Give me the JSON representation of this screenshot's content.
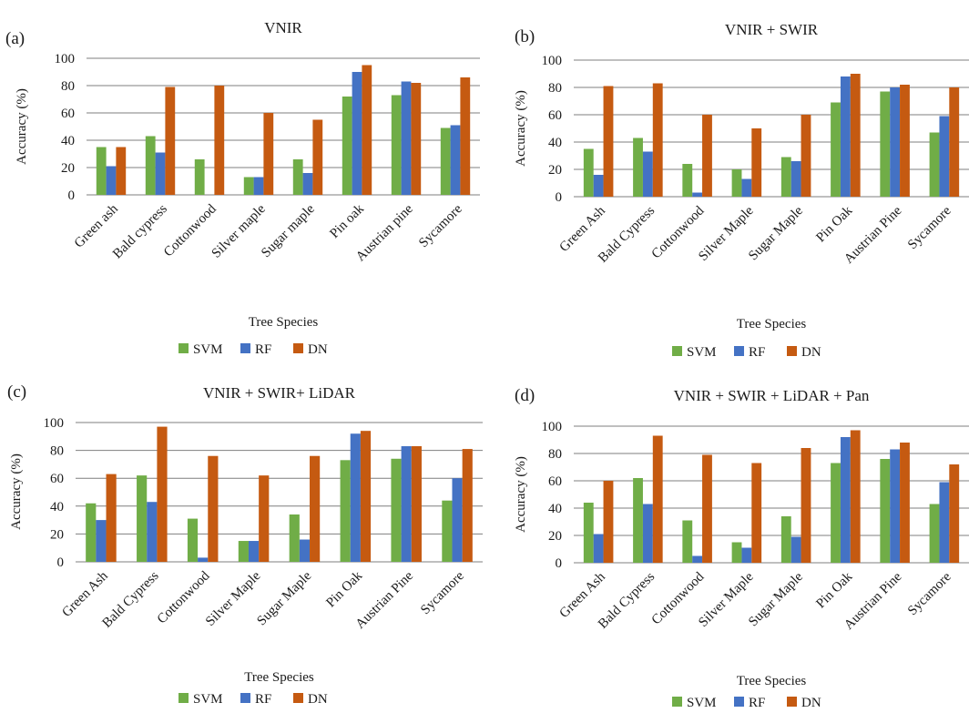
{
  "colors": {
    "SVM": "#70ad47",
    "RF": "#4472c4",
    "DN": "#c55a11"
  },
  "series_names": [
    "SVM",
    "RF",
    "DN"
  ],
  "chart_data": [
    {
      "type": "bar",
      "panel": "(a)",
      "title": "VNIR",
      "xlabel": "Tree Species",
      "ylabel": "Accuracy (%)",
      "ylim": [
        0,
        100
      ],
      "yticks": [
        0,
        20,
        40,
        60,
        80,
        100
      ],
      "grid": true,
      "legend": "bottom",
      "categories": [
        "Green ash",
        "Bald cypress",
        "Cottonwood",
        "Silver maple",
        "Sugar maple",
        "Pin oak",
        "Austrian pine",
        "Sycamore"
      ],
      "series": [
        {
          "name": "SVM",
          "values": [
            35,
            43,
            26,
            13,
            26,
            72,
            73,
            49
          ]
        },
        {
          "name": "RF",
          "values": [
            21,
            31,
            0,
            13,
            16,
            90,
            83,
            51
          ]
        },
        {
          "name": "DN",
          "values": [
            35,
            79,
            80,
            60,
            55,
            95,
            82,
            86
          ]
        }
      ]
    },
    {
      "type": "bar",
      "panel": "(b)",
      "title": "VNIR + SWIR",
      "xlabel": "Tree Species",
      "ylabel": "Accuracy (%)",
      "ylim": [
        0,
        100
      ],
      "yticks": [
        0,
        20,
        40,
        60,
        80,
        100
      ],
      "grid": true,
      "legend": "bottom",
      "categories": [
        "Green Ash",
        "Bald Cypress",
        "Cottonwood",
        "Silver Maple",
        "Sugar Maple",
        "Pin Oak",
        "Austrian Pine",
        "Sycamore"
      ],
      "series": [
        {
          "name": "SVM",
          "values": [
            35,
            43,
            24,
            20,
            29,
            69,
            77,
            47
          ]
        },
        {
          "name": "RF",
          "values": [
            16,
            33,
            3,
            13,
            26,
            88,
            80,
            59
          ]
        },
        {
          "name": "DN",
          "values": [
            81,
            83,
            60,
            50,
            60,
            90,
            82,
            80
          ]
        }
      ]
    },
    {
      "type": "bar",
      "panel": "(c)",
      "title": "VNIR + SWIR+ LiDAR",
      "xlabel": "Tree Species",
      "ylabel": "Accuracy (%)",
      "ylim": [
        0,
        100
      ],
      "yticks": [
        0,
        20,
        40,
        60,
        80,
        100
      ],
      "grid": true,
      "legend": "bottom",
      "categories": [
        "Green Ash",
        "Bald Cypress",
        "Cottonwood",
        "Silver Maple",
        "Sugar Maple",
        "Pin Oak",
        "Austrian Pine",
        "Sycamore"
      ],
      "series": [
        {
          "name": "SVM",
          "values": [
            42,
            62,
            31,
            15,
            34,
            73,
            74,
            44
          ]
        },
        {
          "name": "RF",
          "values": [
            30,
            43,
            3,
            15,
            16,
            92,
            83,
            60
          ]
        },
        {
          "name": "DN",
          "values": [
            63,
            97,
            76,
            62,
            76,
            94,
            83,
            81
          ]
        }
      ]
    },
    {
      "type": "bar",
      "panel": "(d)",
      "title": "VNIR + SWIR + LiDAR + Pan",
      "xlabel": "Tree Species",
      "ylabel": "Accuracy (%)",
      "ylim": [
        0,
        100
      ],
      "yticks": [
        0,
        20,
        40,
        60,
        80,
        100
      ],
      "grid": true,
      "legend": "bottom",
      "categories": [
        "Green Ash",
        "Bald Cypress",
        "Cottonwood",
        "Silver Maple",
        "Sugar Maple",
        "Pin Oak",
        "Austrian Pine",
        "Sycamore"
      ],
      "series": [
        {
          "name": "SVM",
          "values": [
            44,
            62,
            31,
            15,
            34,
            73,
            76,
            43
          ]
        },
        {
          "name": "RF",
          "values": [
            21,
            43,
            5,
            11,
            19,
            92,
            83,
            59
          ]
        },
        {
          "name": "DN",
          "values": [
            60,
            93,
            79,
            73,
            84,
            97,
            88,
            72
          ]
        }
      ]
    }
  ]
}
